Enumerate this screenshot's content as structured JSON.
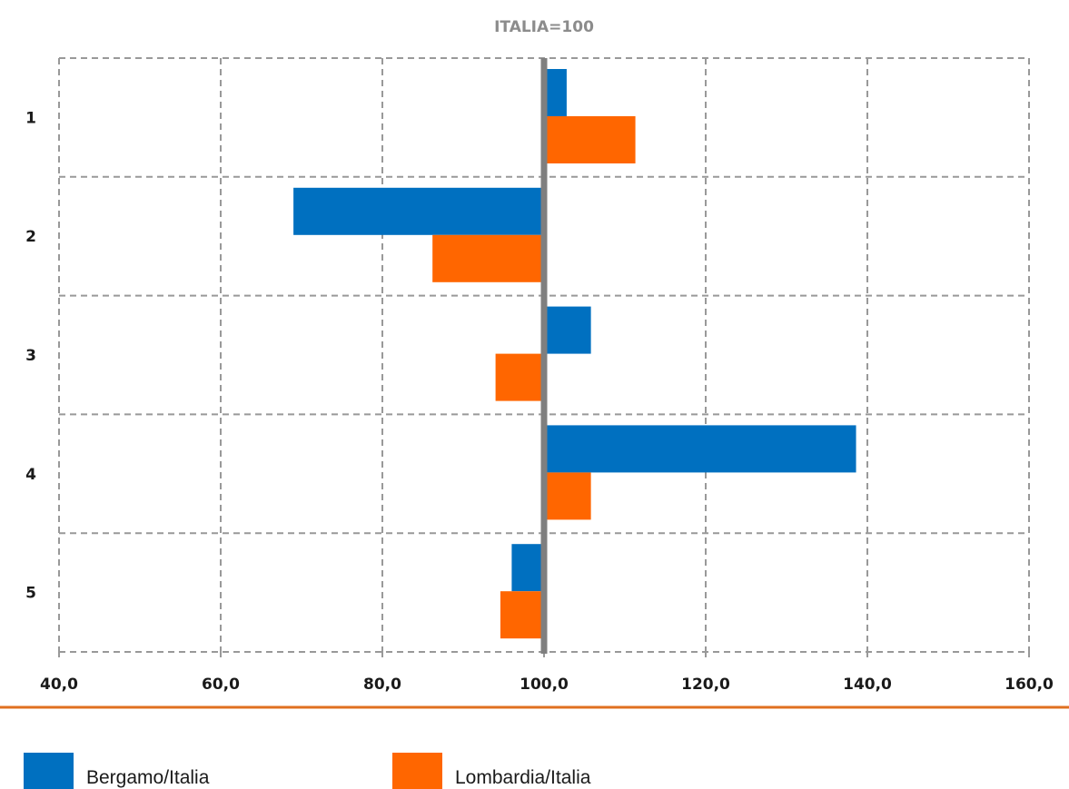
{
  "chart_data": {
    "type": "bar",
    "orientation": "horizontal",
    "title": "ITALIA=100",
    "categories": [
      "1",
      "2",
      "3",
      "4",
      "5"
    ],
    "baseline": 100,
    "series": [
      {
        "name": "Bergamo/Italia",
        "color": "#0070c0",
        "values": [
          102.8,
          69.0,
          105.8,
          138.6,
          96.0
        ]
      },
      {
        "name": "Lombardia/Italia",
        "color": "#ff6600",
        "values": [
          111.3,
          86.2,
          94.0,
          105.8,
          94.6
        ]
      }
    ],
    "xlim": [
      40,
      160
    ],
    "xticks": [
      40,
      60,
      80,
      100,
      120,
      140,
      160
    ],
    "xtick_labels": [
      "40,0",
      "60,0",
      "80,0",
      "100,0",
      "120,0",
      "140,0",
      "160,0"
    ],
    "grid": true,
    "legend_position": "bottom",
    "colors": {
      "grid": "#999999",
      "baseline": "#7f7f7f",
      "separator": "#e07020"
    }
  }
}
